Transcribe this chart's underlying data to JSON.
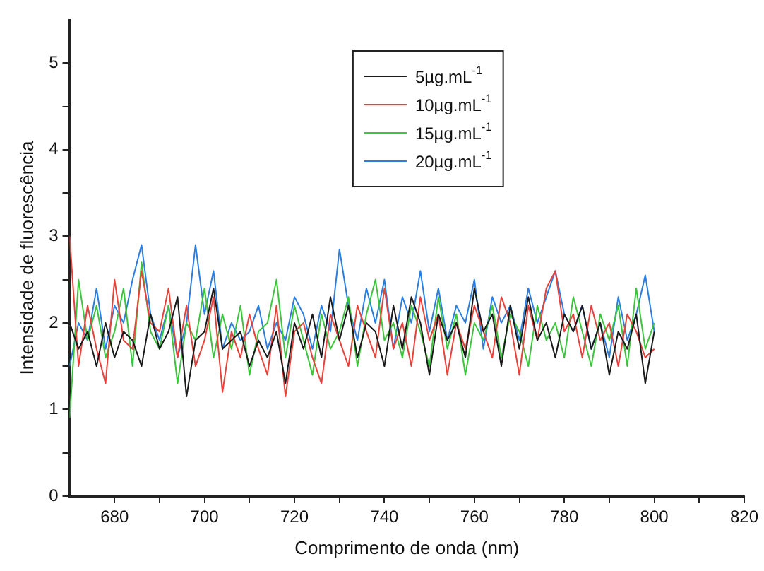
{
  "chart_data": {
    "type": "line",
    "xlabel": "Comprimento de onda (nm)",
    "ylabel": "Intensidade de fluorescência",
    "x": [
      670,
      672,
      674,
      676,
      678,
      680,
      682,
      684,
      686,
      688,
      690,
      692,
      694,
      696,
      698,
      700,
      702,
      704,
      706,
      708,
      710,
      712,
      714,
      716,
      718,
      720,
      722,
      724,
      726,
      728,
      730,
      732,
      734,
      736,
      738,
      740,
      742,
      744,
      746,
      748,
      750,
      752,
      754,
      756,
      758,
      760,
      762,
      764,
      766,
      768,
      770,
      772,
      774,
      776,
      778,
      780,
      782,
      784,
      786,
      788,
      790,
      792,
      794,
      796,
      798,
      800
    ],
    "series": [
      {
        "name": "5µg.mL$^{-1}$",
        "color": "#1a1a1a",
        "values": [
          2.0,
          1.7,
          1.9,
          1.5,
          2.0,
          1.6,
          1.9,
          1.8,
          1.5,
          2.1,
          1.7,
          1.9,
          2.3,
          1.15,
          1.8,
          1.9,
          2.4,
          1.7,
          1.8,
          1.9,
          1.5,
          1.8,
          1.6,
          1.9,
          1.3,
          2.0,
          1.7,
          2.1,
          1.6,
          2.3,
          1.8,
          2.2,
          1.6,
          2.0,
          1.9,
          1.5,
          2.2,
          1.7,
          2.3,
          2.0,
          1.4,
          2.1,
          1.8,
          2.0,
          1.6,
          2.4,
          1.9,
          2.1,
          1.5,
          2.2,
          1.7,
          2.3,
          1.8,
          2.0,
          1.6,
          2.1,
          1.9,
          2.2,
          1.7,
          2.0,
          1.4,
          1.9,
          1.7,
          2.1,
          1.3,
          1.9
        ]
      },
      {
        "name": "10µg.mL$^{-1}$",
        "color": "#e8413a",
        "values": [
          3.0,
          1.5,
          2.2,
          1.7,
          1.3,
          2.5,
          1.8,
          1.7,
          2.6,
          2.0,
          1.9,
          2.4,
          1.6,
          2.2,
          1.5,
          1.8,
          2.3,
          1.2,
          1.9,
          1.6,
          2.1,
          1.7,
          1.4,
          2.2,
          1.15,
          1.9,
          2.0,
          1.6,
          1.3,
          2.1,
          1.8,
          1.5,
          2.2,
          1.9,
          1.6,
          2.4,
          1.7,
          2.0,
          1.5,
          2.3,
          1.8,
          2.1,
          1.4,
          2.0,
          1.7,
          2.2,
          1.9,
          1.6,
          2.3,
          2.0,
          1.4,
          2.2,
          1.8,
          2.4,
          2.6,
          1.9,
          2.1,
          1.6,
          2.2,
          1.8,
          2.0,
          1.5,
          2.1,
          1.9,
          1.6,
          1.7
        ]
      },
      {
        "name": "15µg.mL$^{-1}$",
        "color": "#3cc43c",
        "values": [
          0.9,
          2.5,
          1.8,
          2.2,
          1.6,
          1.9,
          2.4,
          1.5,
          2.7,
          1.9,
          1.7,
          2.2,
          1.3,
          2.0,
          1.8,
          2.4,
          1.6,
          2.1,
          1.7,
          2.2,
          1.4,
          1.9,
          2.0,
          2.5,
          1.6,
          2.2,
          1.8,
          1.4,
          2.1,
          1.7,
          1.9,
          2.3,
          1.5,
          2.1,
          2.5,
          1.8,
          2.0,
          1.6,
          2.2,
          1.9,
          1.5,
          2.3,
          1.7,
          2.1,
          1.4,
          2.0,
          1.8,
          2.2,
          1.6,
          2.1,
          1.9,
          1.5,
          2.2,
          1.8,
          2.0,
          1.6,
          2.3,
          1.9,
          1.5,
          2.1,
          1.8,
          2.2,
          1.5,
          2.4,
          1.7,
          2.0
        ]
      },
      {
        "name": "20µg.mL$^{-1}$",
        "color": "#2a7de1",
        "values": [
          1.5,
          2.0,
          1.8,
          2.4,
          1.7,
          2.2,
          2.0,
          2.5,
          2.9,
          2.1,
          1.8,
          2.2,
          1.6,
          2.0,
          2.9,
          2.1,
          2.6,
          1.7,
          2.0,
          1.8,
          1.9,
          2.2,
          1.7,
          2.0,
          1.8,
          2.3,
          2.1,
          1.7,
          2.2,
          1.9,
          2.85,
          2.2,
          1.8,
          2.4,
          2.0,
          2.5,
          1.7,
          2.3,
          2.0,
          2.6,
          1.9,
          2.4,
          1.8,
          2.2,
          2.0,
          2.5,
          1.7,
          2.3,
          2.0,
          2.2,
          1.8,
          2.4,
          2.0,
          2.3,
          2.6,
          2.1,
          1.9,
          2.2,
          1.7,
          2.0,
          1.6,
          2.3,
          1.8,
          2.1,
          2.55,
          1.9
        ]
      }
    ],
    "xlim": [
      670,
      820
    ],
    "xticks": [
      680,
      {
        "value": 690,
        "label": null
      },
      700,
      {
        "value": 710,
        "label": null
      },
      720,
      {
        "value": 730,
        "label": null
      },
      740,
      {
        "value": 750,
        "label": null
      },
      760,
      {
        "value": 770,
        "label": null
      },
      780,
      {
        "value": 790,
        "label": null
      },
      800,
      {
        "value": 810,
        "label": null
      },
      820
    ],
    "ylim": [
      0,
      5.5
    ],
    "yticks": [
      0,
      {
        "value": 0.5,
        "label": null
      },
      1,
      {
        "value": 1.5,
        "label": null
      },
      2,
      {
        "value": 2.5,
        "label": null
      },
      3,
      {
        "value": 3.5,
        "label": null
      },
      4,
      {
        "value": 4.5,
        "label": null
      },
      5
    ],
    "grid": false,
    "legend": "top",
    "marker": "none",
    "line_style": "solid"
  }
}
